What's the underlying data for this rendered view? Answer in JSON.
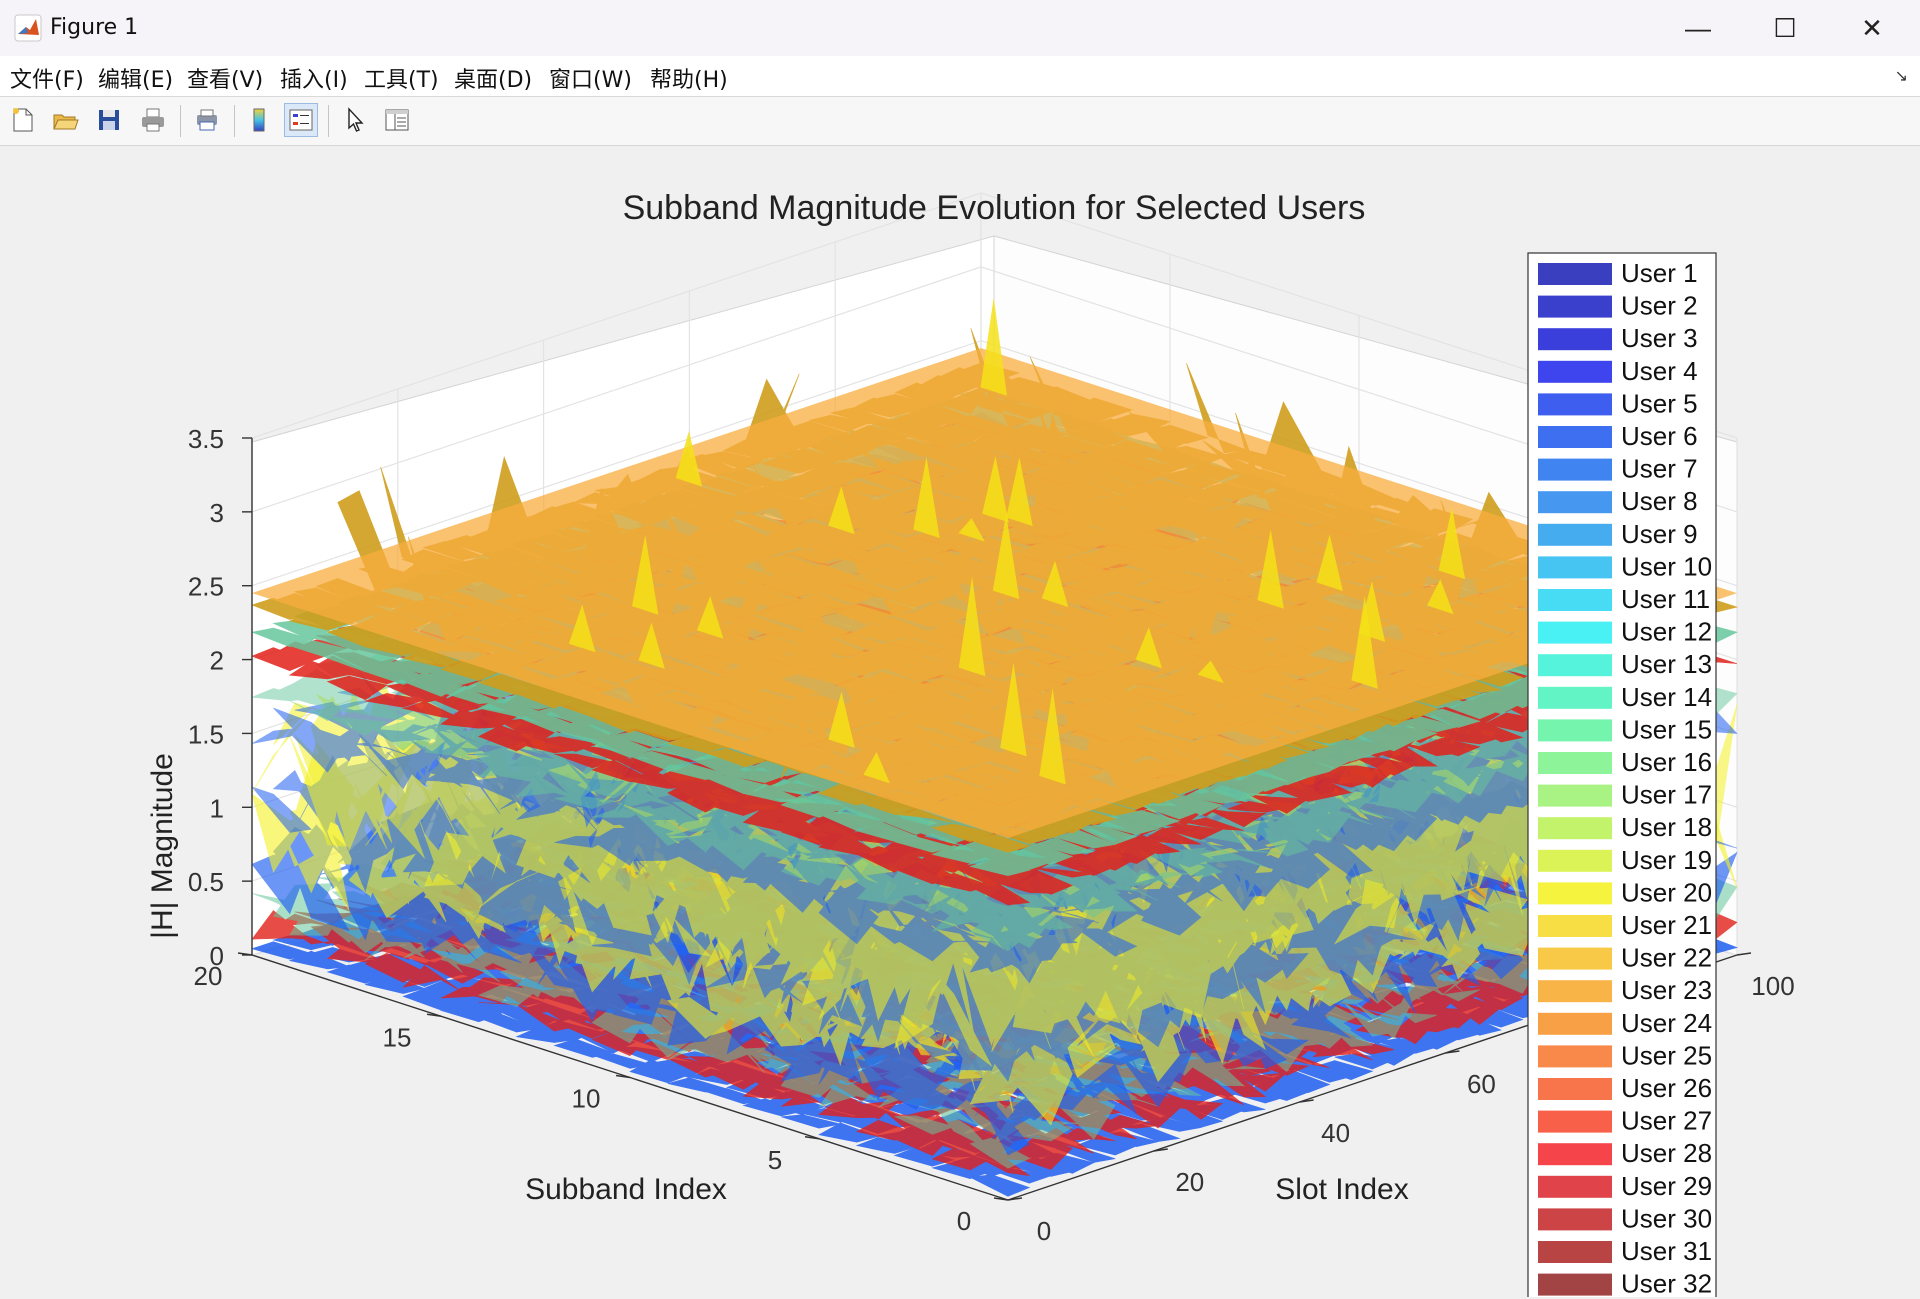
{
  "window": {
    "title": "Figure 1",
    "minimize": "—",
    "maximize": "☐",
    "close": "✕"
  },
  "menu": [
    {
      "label": "文件(F)"
    },
    {
      "label": "编辑(E)"
    },
    {
      "label": "查看(V)"
    },
    {
      "label": "插入(I)"
    },
    {
      "label": "工具(T)"
    },
    {
      "label": "桌面(D)"
    },
    {
      "label": "窗口(W)"
    },
    {
      "label": "帮助(H)"
    }
  ],
  "toolbar": {
    "icons": [
      "new-figure-icon",
      "open-file-icon",
      "save-icon",
      "print-icon",
      "print-preview-icon",
      "colorbar-icon",
      "legend-icon",
      "edit-plot-pointer-icon",
      "property-inspector-icon"
    ]
  },
  "colors": {
    "surface_gold": "#cf9e1c",
    "surface_orange": "#f8ad3f",
    "surface_teal": "#66c79c",
    "surface_red": "#e2201a",
    "surface_blue": "#1f5ff0",
    "surface_yellow": "#f4f124"
  },
  "chart_data": {
    "type": "surface3d",
    "title": "Subband Magnitude Evolution for Selected Users",
    "xlabel": "Subband Index",
    "ylabel": "Slot Index",
    "zlabel": "|H| Magnitude",
    "xlim": [
      0,
      20
    ],
    "ylim": [
      0,
      100
    ],
    "zlim": [
      0,
      3.5
    ],
    "x_ticks": [
      "0",
      "5",
      "10",
      "15",
      "20"
    ],
    "y_ticks": [
      "0",
      "20",
      "40",
      "60",
      "100"
    ],
    "z_ticks": [
      "0",
      "0.5",
      "1",
      "1.5",
      "2",
      "2.5",
      "3",
      "3.5"
    ],
    "grid": true,
    "legend_position": "right",
    "series": [
      {
        "name": "User 1",
        "color": "#3a3fbf"
      },
      {
        "name": "User 2",
        "color": "#3a3fcc"
      },
      {
        "name": "User 3",
        "color": "#3a3fdc"
      },
      {
        "name": "User 4",
        "color": "#3e45ee"
      },
      {
        "name": "User 5",
        "color": "#3e5ef0"
      },
      {
        "name": "User 6",
        "color": "#3d6ff0"
      },
      {
        "name": "User 7",
        "color": "#3f84f0"
      },
      {
        "name": "User 8",
        "color": "#4597f0"
      },
      {
        "name": "User 9",
        "color": "#45acf0"
      },
      {
        "name": "User 10",
        "color": "#46c5f2"
      },
      {
        "name": "User 11",
        "color": "#48dcf4"
      },
      {
        "name": "User 12",
        "color": "#49f1f5"
      },
      {
        "name": "User 13",
        "color": "#55f3dc"
      },
      {
        "name": "User 14",
        "color": "#63f4c6"
      },
      {
        "name": "User 15",
        "color": "#75f4ae"
      },
      {
        "name": "User 16",
        "color": "#8ef49a"
      },
      {
        "name": "User 17",
        "color": "#a8f383"
      },
      {
        "name": "User 18",
        "color": "#c3f36b"
      },
      {
        "name": "User 19",
        "color": "#dcf357"
      },
      {
        "name": "User 20",
        "color": "#f6f33f"
      },
      {
        "name": "User 21",
        "color": "#f8de45"
      },
      {
        "name": "User 22",
        "color": "#f8c946"
      },
      {
        "name": "User 23",
        "color": "#f8b446"
      },
      {
        "name": "User 24",
        "color": "#f8a046"
      },
      {
        "name": "User 25",
        "color": "#f8894a"
      },
      {
        "name": "User 26",
        "color": "#f8744a"
      },
      {
        "name": "User 27",
        "color": "#f8604a"
      },
      {
        "name": "User 28",
        "color": "#f5454a"
      },
      {
        "name": "User 29",
        "color": "#e0444a"
      },
      {
        "name": "User 30",
        "color": "#cc4446"
      },
      {
        "name": "User 31",
        "color": "#b84444"
      },
      {
        "name": "User 32",
        "color": "#a34444"
      }
    ]
  }
}
